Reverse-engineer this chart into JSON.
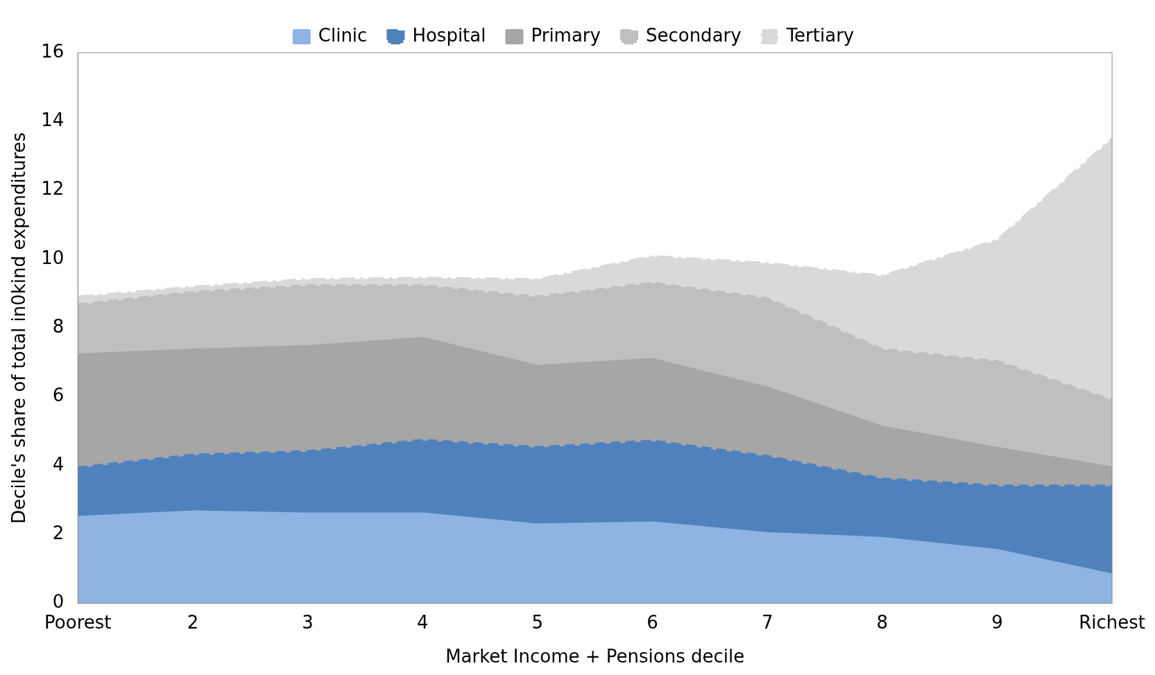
{
  "chart_data": {
    "type": "area",
    "stacked": true,
    "xlabel": "Market Income + Pensions decile",
    "ylabel": "Decile's share of total in0kind expenditures",
    "categories": [
      "Poorest",
      "2",
      "3",
      "4",
      "5",
      "6",
      "7",
      "8",
      "9",
      "Richest"
    ],
    "ylim": [
      0,
      16
    ],
    "yticks": [
      0,
      2,
      4,
      6,
      8,
      10,
      12,
      14,
      16
    ],
    "grid": false,
    "legend": "top",
    "marker": "none",
    "series": [
      {
        "name": "Clinic",
        "color": "#8eb4e3",
        "line_style": "solid",
        "values": [
          2.5,
          2.66,
          2.6,
          2.6,
          2.28,
          2.34,
          2.03,
          1.89,
          1.54,
          0.83
        ]
      },
      {
        "name": "Hospital",
        "color": "#4f81bd",
        "line_style": "dashed",
        "values": [
          1.44,
          1.65,
          1.81,
          2.14,
          2.25,
          2.38,
          2.24,
          1.73,
          1.87,
          2.58
        ]
      },
      {
        "name": "Primary",
        "color": "#a6a6a6",
        "line_style": "solid",
        "values": [
          3.28,
          3.05,
          3.05,
          2.96,
          2.36,
          2.37,
          1.99,
          1.5,
          1.1,
          0.53
        ]
      },
      {
        "name": "Secondary",
        "color": "#bfbfbf",
        "line_style": "dashed",
        "values": [
          1.46,
          1.68,
          1.77,
          1.53,
          2.01,
          2.22,
          2.6,
          2.26,
          2.52,
          1.97
        ]
      },
      {
        "name": "Tertiary",
        "color": "#d9d9d9",
        "line_style": "dashdot",
        "values": [
          0.22,
          0.15,
          0.18,
          0.22,
          0.51,
          0.77,
          1.02,
          2.13,
          3.52,
          7.59
        ]
      }
    ]
  }
}
